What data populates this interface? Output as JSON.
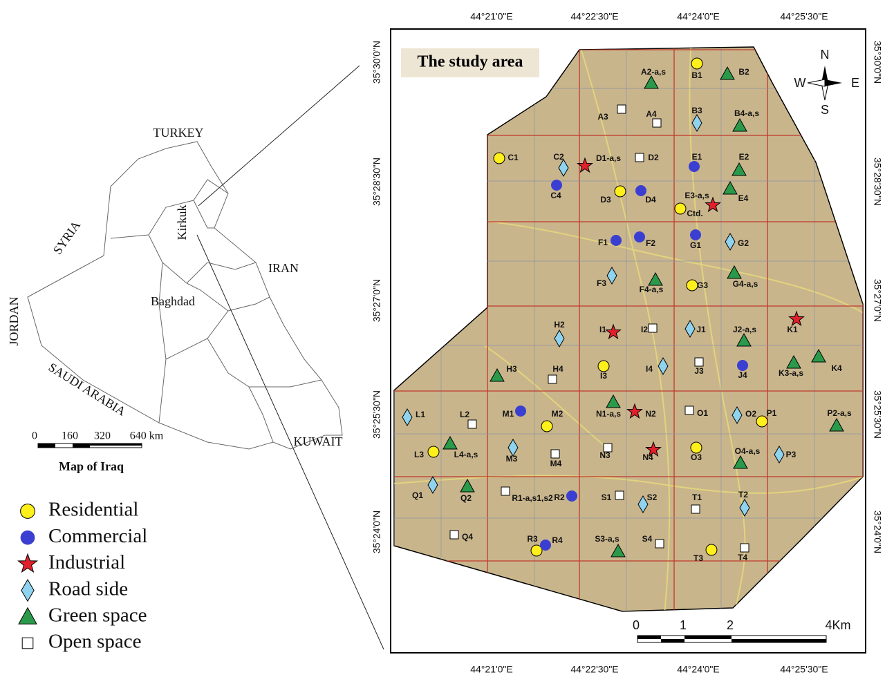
{
  "iraq_map": {
    "title": "Map of Iraq",
    "countries": [
      "TURKEY",
      "SYRIA",
      "IRAN",
      "JORDAN",
      "SAUDI ARABIA",
      "KUWAIT"
    ],
    "cities": [
      "Kirkuk",
      "Baghdad"
    ],
    "scale": [
      "0",
      "160",
      "320",
      "640 km"
    ]
  },
  "legend": [
    {
      "label": "Residential",
      "sites": [
        "B1",
        "C1",
        "D3",
        "Ctd.",
        "G3",
        "I3",
        "M2",
        "L3",
        "O3",
        "P1",
        "T3",
        "R3"
      ]
    },
    {
      "label": "Commercial",
      "sites": [
        "E1",
        "C4",
        "D4",
        "F1",
        "F2",
        "G1",
        "J4",
        "M1",
        "R2",
        "R4"
      ]
    },
    {
      "label": "Industrial",
      "sites": [
        "D1-a,s",
        "E3-a,s",
        "I1",
        "K1",
        "N2",
        "N4"
      ]
    },
    {
      "label": "Road side",
      "sites": [
        "B3",
        "C2",
        "F3",
        "G2",
        "J1",
        "H2",
        "I4",
        "O2",
        "L1",
        "M3",
        "P3",
        "Q1",
        "S2",
        "T2"
      ]
    },
    {
      "label": "Green space",
      "sites": [
        "A2-a,s",
        "B2",
        "B4-a,s",
        "E2",
        "E4",
        "G4-a,s",
        "F4-a,s",
        "J2-a,s",
        "K3-a,s",
        "K4",
        "H3",
        "N1-a,s",
        "P2-a,s",
        "L4-a,s",
        "O4-a,s",
        "Q2",
        "S3-a,s"
      ]
    },
    {
      "label": "Open space",
      "sites": [
        "A3",
        "A4",
        "D2",
        "I2",
        "J3",
        "H4",
        "L2",
        "O1",
        "M4",
        "N3",
        "R1-a,s1,s2",
        "S1",
        "T1",
        "Q4",
        "S4",
        "T4"
      ]
    }
  ],
  "study_area": {
    "title": "The study area",
    "longitudes": [
      "44°21'0\"E",
      "44°22'30\"E",
      "44°24'0\"E",
      "44°25'30\"E"
    ],
    "latitudes": [
      "35°30'0\"N",
      "35°28'30\"N",
      "35°27'0\"N",
      "35°25'30\"N",
      "35°24'0\"N"
    ],
    "compass": [
      "N",
      "S",
      "W",
      "E"
    ],
    "scale": [
      "0",
      "1",
      "2",
      "4Km"
    ]
  }
}
